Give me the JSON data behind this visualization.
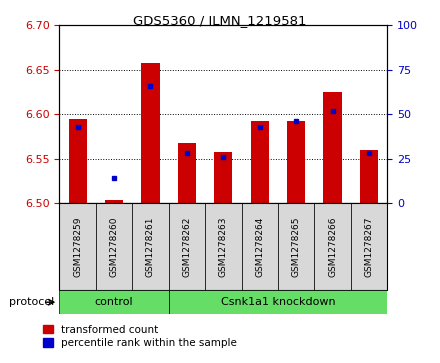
{
  "title": "GDS5360 / ILMN_1219581",
  "samples": [
    "GSM1278259",
    "GSM1278260",
    "GSM1278261",
    "GSM1278262",
    "GSM1278263",
    "GSM1278264",
    "GSM1278265",
    "GSM1278266",
    "GSM1278267"
  ],
  "transformed_count": [
    6.595,
    6.504,
    6.658,
    6.568,
    6.558,
    6.592,
    6.593,
    6.625,
    6.56
  ],
  "percentile_rank": [
    43,
    14,
    66,
    28,
    26,
    43,
    46,
    52,
    28
  ],
  "ylim_left": [
    6.5,
    6.7
  ],
  "ylim_right": [
    0,
    100
  ],
  "yticks_left": [
    6.5,
    6.55,
    6.6,
    6.65,
    6.7
  ],
  "yticks_right": [
    0,
    25,
    50,
    75,
    100
  ],
  "bar_color": "#cc0000",
  "dot_color": "#0000cc",
  "control_count": 3,
  "knockdown_count": 6,
  "control_label": "control",
  "knockdown_label": "Csnk1a1 knockdown",
  "protocol_label": "protocol",
  "legend_transformed": "transformed count",
  "legend_percentile": "percentile rank within the sample",
  "group_color": "#66dd66",
  "tick_label_fontsize": 6.5,
  "bar_width": 0.5,
  "fig_width": 4.4,
  "fig_height": 3.63
}
